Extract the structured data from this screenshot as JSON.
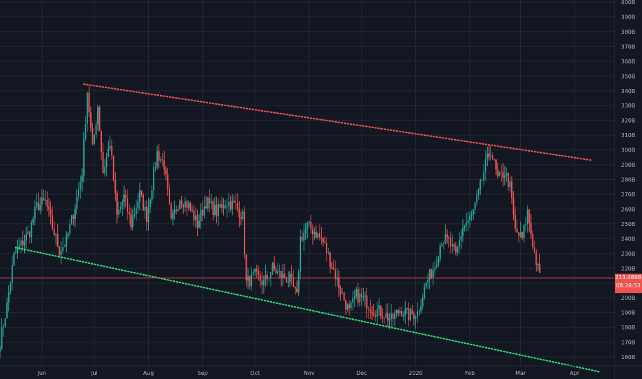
{
  "chart_data": {
    "type": "candlestick",
    "y_axis": {
      "min": 150,
      "max": 400,
      "ticks": [
        {
          "value": 400,
          "label": "400B"
        },
        {
          "value": 390,
          "label": "390B"
        },
        {
          "value": 380,
          "label": "380B"
        },
        {
          "value": 370,
          "label": "370B"
        },
        {
          "value": 360,
          "label": "360B"
        },
        {
          "value": 350,
          "label": "350B"
        },
        {
          "value": 340,
          "label": "340B"
        },
        {
          "value": 330,
          "label": "330B"
        },
        {
          "value": 320,
          "label": "320B"
        },
        {
          "value": 310,
          "label": "310B"
        },
        {
          "value": 300,
          "label": "300B"
        },
        {
          "value": 290,
          "label": "290B"
        },
        {
          "value": 280,
          "label": "280B"
        },
        {
          "value": 270,
          "label": "270B"
        },
        {
          "value": 260,
          "label": "260B"
        },
        {
          "value": 250,
          "label": "250B"
        },
        {
          "value": 240,
          "label": "240B"
        },
        {
          "value": 230,
          "label": "230B"
        },
        {
          "value": 220,
          "label": "220B"
        },
        {
          "value": 210,
          "label": "210B"
        },
        {
          "value": 200,
          "label": "200B"
        },
        {
          "value": 190,
          "label": "190B"
        },
        {
          "value": 180,
          "label": "180B"
        },
        {
          "value": 170,
          "label": "170B"
        },
        {
          "value": 160,
          "label": "160B"
        }
      ]
    },
    "x_axis": {
      "labels": [
        {
          "date": "2019-06-01",
          "label": "Jun"
        },
        {
          "date": "2019-07-01",
          "label": "Jul"
        },
        {
          "date": "2019-08-01",
          "label": "Aug"
        },
        {
          "date": "2019-09-01",
          "label": "Sep"
        },
        {
          "date": "2019-10-01",
          "label": "Oct"
        },
        {
          "date": "2019-11-01",
          "label": "Nov"
        },
        {
          "date": "2019-12-01",
          "label": "Dec"
        },
        {
          "date": "2020-01-01",
          "label": "2020"
        },
        {
          "date": "2020-02-01",
          "label": "Feb"
        },
        {
          "date": "2020-03-01",
          "label": "Mar"
        },
        {
          "date": "2020-04-01",
          "label": "Apr"
        }
      ],
      "start": "2019-05-08",
      "end": "2020-04-23"
    },
    "current_price": {
      "value": 213.489,
      "label": "213.489B",
      "countdown": "08:28:53",
      "color": "#ef5350"
    },
    "trendlines": [
      {
        "name": "resistance",
        "color": "#ef5350",
        "style": "dotted",
        "from": {
          "date": "2019-06-25",
          "value": 344.5
        },
        "to": {
          "date": "2020-04-11",
          "value": 293
        }
      },
      {
        "name": "support",
        "color": "#26e07a",
        "style": "dotted",
        "from": {
          "date": "2019-05-17",
          "value": 234
        },
        "to": {
          "date": "2020-04-15",
          "value": 150
        }
      }
    ],
    "colors": {
      "up": "#26a69a",
      "down": "#ef5350",
      "background": "#131722",
      "grid": "#252936"
    },
    "anchors": [
      {
        "date": "2019-05-08",
        "value": 170
      },
      {
        "date": "2019-05-12",
        "value": 195
      },
      {
        "date": "2019-05-16",
        "value": 228
      },
      {
        "date": "2019-05-20",
        "value": 236
      },
      {
        "date": "2019-05-25",
        "value": 245
      },
      {
        "date": "2019-05-29",
        "value": 262
      },
      {
        "date": "2019-06-03",
        "value": 265
      },
      {
        "date": "2019-06-07",
        "value": 248
      },
      {
        "date": "2019-06-11",
        "value": 232
      },
      {
        "date": "2019-06-15",
        "value": 238
      },
      {
        "date": "2019-06-20",
        "value": 262
      },
      {
        "date": "2019-06-24",
        "value": 285
      },
      {
        "date": "2019-06-27",
        "value": 340
      },
      {
        "date": "2019-06-30",
        "value": 300
      },
      {
        "date": "2019-07-03",
        "value": 330
      },
      {
        "date": "2019-07-06",
        "value": 285
      },
      {
        "date": "2019-07-10",
        "value": 305
      },
      {
        "date": "2019-07-14",
        "value": 255
      },
      {
        "date": "2019-07-18",
        "value": 268
      },
      {
        "date": "2019-07-22",
        "value": 250
      },
      {
        "date": "2019-07-27",
        "value": 270
      },
      {
        "date": "2019-07-31",
        "value": 255
      },
      {
        "date": "2019-08-06",
        "value": 298
      },
      {
        "date": "2019-08-10",
        "value": 290
      },
      {
        "date": "2019-08-14",
        "value": 250
      },
      {
        "date": "2019-08-19",
        "value": 268
      },
      {
        "date": "2019-08-24",
        "value": 262
      },
      {
        "date": "2019-08-29",
        "value": 250
      },
      {
        "date": "2019-09-03",
        "value": 265
      },
      {
        "date": "2019-09-09",
        "value": 258
      },
      {
        "date": "2019-09-15",
        "value": 265
      },
      {
        "date": "2019-09-20",
        "value": 262
      },
      {
        "date": "2019-09-24",
        "value": 255
      },
      {
        "date": "2019-09-26",
        "value": 210
      },
      {
        "date": "2019-10-01",
        "value": 215
      },
      {
        "date": "2019-10-06",
        "value": 210
      },
      {
        "date": "2019-10-11",
        "value": 220
      },
      {
        "date": "2019-10-16",
        "value": 215
      },
      {
        "date": "2019-10-21",
        "value": 212
      },
      {
        "date": "2019-10-25",
        "value": 200
      },
      {
        "date": "2019-10-27",
        "value": 240
      },
      {
        "date": "2019-10-31",
        "value": 248
      },
      {
        "date": "2019-11-04",
        "value": 245
      },
      {
        "date": "2019-11-09",
        "value": 238
      },
      {
        "date": "2019-11-14",
        "value": 222
      },
      {
        "date": "2019-11-19",
        "value": 205
      },
      {
        "date": "2019-11-24",
        "value": 190
      },
      {
        "date": "2019-11-28",
        "value": 202
      },
      {
        "date": "2019-12-03",
        "value": 198
      },
      {
        "date": "2019-12-08",
        "value": 192
      },
      {
        "date": "2019-12-13",
        "value": 190
      },
      {
        "date": "2019-12-18",
        "value": 185
      },
      {
        "date": "2019-12-23",
        "value": 192
      },
      {
        "date": "2019-12-28",
        "value": 188
      },
      {
        "date": "2020-01-02",
        "value": 190
      },
      {
        "date": "2020-01-07",
        "value": 210
      },
      {
        "date": "2020-01-12",
        "value": 222
      },
      {
        "date": "2020-01-16",
        "value": 240
      },
      {
        "date": "2020-01-20",
        "value": 238
      },
      {
        "date": "2020-01-24",
        "value": 228
      },
      {
        "date": "2020-01-28",
        "value": 248
      },
      {
        "date": "2020-02-02",
        "value": 255
      },
      {
        "date": "2020-02-06",
        "value": 270
      },
      {
        "date": "2020-02-10",
        "value": 290
      },
      {
        "date": "2020-02-13",
        "value": 300
      },
      {
        "date": "2020-02-17",
        "value": 280
      },
      {
        "date": "2020-02-21",
        "value": 285
      },
      {
        "date": "2020-02-24",
        "value": 275
      },
      {
        "date": "2020-02-27",
        "value": 245
      },
      {
        "date": "2020-03-02",
        "value": 240
      },
      {
        "date": "2020-03-05",
        "value": 258
      },
      {
        "date": "2020-03-09",
        "value": 230
      },
      {
        "date": "2020-03-12",
        "value": 214
      }
    ]
  }
}
